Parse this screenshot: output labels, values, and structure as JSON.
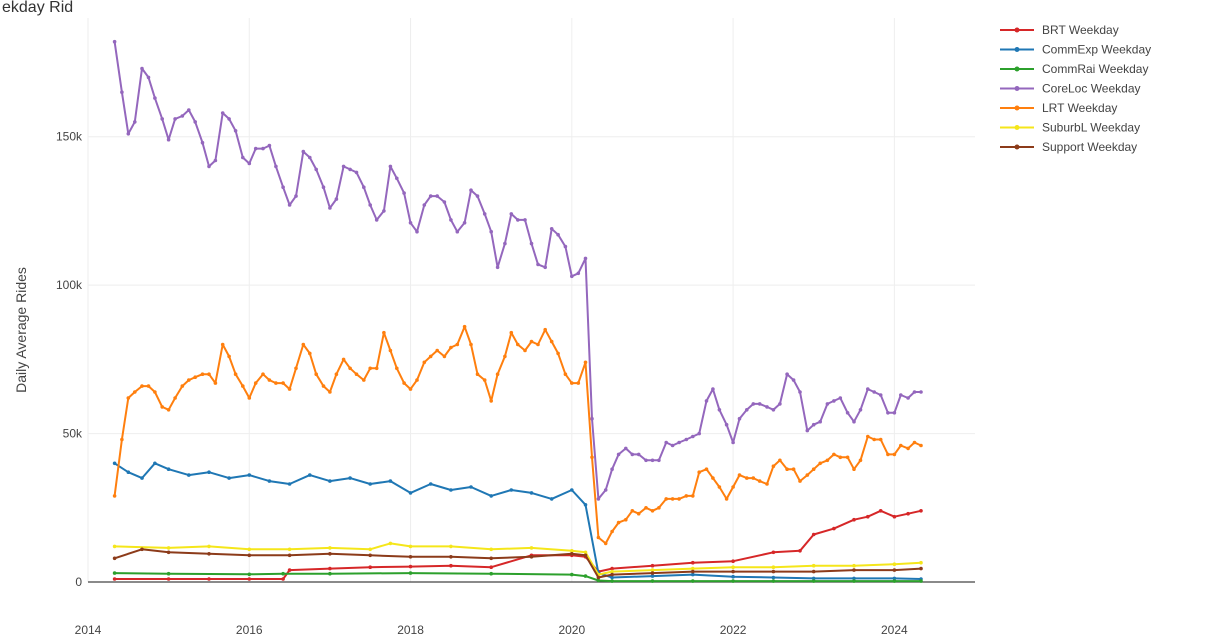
{
  "chart_data": {
    "type": "line",
    "title": "ekday Rid",
    "ylabel": "Daily Average Rides",
    "xlabel": "",
    "xlim": [
      2014.0,
      2025.0
    ],
    "ylim": [
      0,
      190000
    ],
    "x_ticks": [
      2014,
      2016,
      2018,
      2020,
      2022,
      2024
    ],
    "x_tick_labels": [
      "2014",
      "2016",
      "2018",
      "2020",
      "2022",
      "2024"
    ],
    "y_ticks": [
      0,
      50000,
      100000,
      150000
    ],
    "y_tick_labels": [
      "0",
      "50k",
      "100k",
      "150k"
    ],
    "grid": true,
    "legend_position": "top-right",
    "series": [
      {
        "name": "BRT Weekday",
        "color": "#d62728",
        "x": [
          2014.33,
          2015.0,
          2015.5,
          2016.0,
          2016.42,
          2016.5,
          2017.0,
          2017.5,
          2018.0,
          2018.5,
          2019.0,
          2019.5,
          2020.0,
          2020.17,
          2020.33,
          2020.5,
          2021.0,
          2021.5,
          2022.0,
          2022.5,
          2022.83,
          2023.0,
          2023.25,
          2023.5,
          2023.67,
          2023.83,
          2024.0,
          2024.17,
          2024.33
        ],
        "y": [
          1000,
          1000,
          1000,
          1000,
          1000,
          4000,
          4500,
          5000,
          5200,
          5500,
          5000,
          9000,
          9000,
          8500,
          3500,
          4500,
          5500,
          6500,
          7000,
          10000,
          10500,
          16000,
          18000,
          21000,
          22000,
          24000,
          22000,
          23000,
          24000
        ]
      },
      {
        "name": "CommExp Weekday",
        "color": "#1f77b4",
        "x": [
          2014.33,
          2014.5,
          2014.67,
          2014.83,
          2015.0,
          2015.25,
          2015.5,
          2015.75,
          2016.0,
          2016.25,
          2016.5,
          2016.75,
          2017.0,
          2017.25,
          2017.5,
          2017.75,
          2018.0,
          2018.25,
          2018.5,
          2018.75,
          2019.0,
          2019.25,
          2019.5,
          2019.75,
          2020.0,
          2020.17,
          2020.33,
          2020.5,
          2021.0,
          2021.5,
          2022.0,
          2022.5,
          2023.0,
          2023.5,
          2024.0,
          2024.33
        ],
        "y": [
          40000,
          37000,
          35000,
          40000,
          38000,
          36000,
          37000,
          35000,
          36000,
          34000,
          33000,
          36000,
          34000,
          35000,
          33000,
          34000,
          30000,
          33000,
          31000,
          32000,
          29000,
          31000,
          30000,
          28000,
          31000,
          26000,
          3000,
          1500,
          2000,
          2500,
          1800,
          1500,
          1200,
          1200,
          1200,
          1000
        ]
      },
      {
        "name": "CommRai Weekday",
        "color": "#2ca02c",
        "x": [
          2014.33,
          2015.0,
          2016.0,
          2016.42,
          2017.0,
          2018.0,
          2019.0,
          2020.0,
          2020.17,
          2020.33,
          2020.5,
          2021.0,
          2021.5,
          2022.0,
          2022.5,
          2023.0,
          2023.5,
          2024.0,
          2024.33
        ],
        "y": [
          3000,
          2800,
          2600,
          2800,
          2800,
          3000,
          2800,
          2500,
          2000,
          500,
          300,
          300,
          300,
          300,
          300,
          300,
          300,
          300,
          300
        ]
      },
      {
        "name": "CoreLoc Weekday",
        "color": "#9467bd",
        "x": [
          2014.33,
          2014.42,
          2014.5,
          2014.58,
          2014.67,
          2014.75,
          2014.83,
          2014.92,
          2015.0,
          2015.08,
          2015.17,
          2015.25,
          2015.33,
          2015.42,
          2015.5,
          2015.58,
          2015.67,
          2015.75,
          2015.83,
          2015.92,
          2016.0,
          2016.08,
          2016.17,
          2016.25,
          2016.33,
          2016.42,
          2016.5,
          2016.58,
          2016.67,
          2016.75,
          2016.83,
          2016.92,
          2017.0,
          2017.08,
          2017.17,
          2017.25,
          2017.33,
          2017.42,
          2017.5,
          2017.58,
          2017.67,
          2017.75,
          2017.83,
          2017.92,
          2018.0,
          2018.08,
          2018.17,
          2018.25,
          2018.33,
          2018.42,
          2018.5,
          2018.58,
          2018.67,
          2018.75,
          2018.83,
          2018.92,
          2019.0,
          2019.08,
          2019.17,
          2019.25,
          2019.33,
          2019.42,
          2019.5,
          2019.58,
          2019.67,
          2019.75,
          2019.83,
          2019.92,
          2020.0,
          2020.08,
          2020.17,
          2020.25,
          2020.33,
          2020.42,
          2020.5,
          2020.58,
          2020.67,
          2020.75,
          2020.83,
          2020.92,
          2021.0,
          2021.08,
          2021.17,
          2021.25,
          2021.33,
          2021.42,
          2021.5,
          2021.58,
          2021.67,
          2021.75,
          2021.83,
          2021.92,
          2022.0,
          2022.08,
          2022.17,
          2022.25,
          2022.33,
          2022.42,
          2022.5,
          2022.58,
          2022.67,
          2022.75,
          2022.83,
          2022.92,
          2023.0,
          2023.08,
          2023.17,
          2023.25,
          2023.33,
          2023.42,
          2023.5,
          2023.58,
          2023.67,
          2023.75,
          2023.83,
          2023.92,
          2024.0,
          2024.08,
          2024.17,
          2024.25,
          2024.33
        ],
        "y": [
          182000,
          165000,
          151000,
          155000,
          173000,
          170000,
          163000,
          156000,
          149000,
          156000,
          157000,
          159000,
          155000,
          148000,
          140000,
          142000,
          158000,
          156000,
          152000,
          143000,
          141000,
          146000,
          146000,
          147000,
          140000,
          133000,
          127000,
          130000,
          145000,
          143000,
          139000,
          133000,
          126000,
          129000,
          140000,
          139000,
          138000,
          133000,
          127000,
          122000,
          125000,
          140000,
          136000,
          131000,
          121000,
          118000,
          127000,
          130000,
          130000,
          128000,
          122000,
          118000,
          121000,
          132000,
          130000,
          124000,
          118000,
          106000,
          114000,
          124000,
          122000,
          122000,
          114000,
          107000,
          106000,
          119000,
          117000,
          113000,
          103000,
          104000,
          109000,
          55000,
          28000,
          31000,
          38000,
          43000,
          45000,
          43000,
          43000,
          41000,
          41000,
          41000,
          47000,
          46000,
          47000,
          48000,
          49000,
          50000,
          61000,
          65000,
          58000,
          53000,
          47000,
          55000,
          58000,
          60000,
          60000,
          59000,
          58000,
          60000,
          70000,
          68000,
          64000,
          51000,
          53000,
          54000,
          60000,
          61000,
          62000,
          57000,
          54000,
          58000,
          65000,
          64000,
          63000,
          57000,
          57000,
          63000,
          62000,
          64000,
          64000
        ]
      },
      {
        "name": "LRT Weekday",
        "color": "#ff7f0e",
        "x": [
          2014.33,
          2014.42,
          2014.5,
          2014.58,
          2014.67,
          2014.75,
          2014.83,
          2014.92,
          2015.0,
          2015.08,
          2015.17,
          2015.25,
          2015.33,
          2015.42,
          2015.5,
          2015.58,
          2015.67,
          2015.75,
          2015.83,
          2015.92,
          2016.0,
          2016.08,
          2016.17,
          2016.25,
          2016.33,
          2016.42,
          2016.5,
          2016.58,
          2016.67,
          2016.75,
          2016.83,
          2016.92,
          2017.0,
          2017.08,
          2017.17,
          2017.25,
          2017.33,
          2017.42,
          2017.5,
          2017.58,
          2017.67,
          2017.75,
          2017.83,
          2017.92,
          2018.0,
          2018.08,
          2018.17,
          2018.25,
          2018.33,
          2018.42,
          2018.5,
          2018.58,
          2018.67,
          2018.75,
          2018.83,
          2018.92,
          2019.0,
          2019.08,
          2019.17,
          2019.25,
          2019.33,
          2019.42,
          2019.5,
          2019.58,
          2019.67,
          2019.75,
          2019.83,
          2019.92,
          2020.0,
          2020.08,
          2020.17,
          2020.25,
          2020.33,
          2020.42,
          2020.5,
          2020.58,
          2020.67,
          2020.75,
          2020.83,
          2020.92,
          2021.0,
          2021.08,
          2021.17,
          2021.25,
          2021.33,
          2021.42,
          2021.5,
          2021.58,
          2021.67,
          2021.75,
          2021.83,
          2021.92,
          2022.0,
          2022.08,
          2022.17,
          2022.25,
          2022.33,
          2022.42,
          2022.5,
          2022.58,
          2022.67,
          2022.75,
          2022.83,
          2022.92,
          2023.0,
          2023.08,
          2023.17,
          2023.25,
          2023.33,
          2023.42,
          2023.5,
          2023.58,
          2023.67,
          2023.75,
          2023.83,
          2023.92,
          2024.0,
          2024.08,
          2024.17,
          2024.25,
          2024.33
        ],
        "y": [
          29000,
          48000,
          62000,
          64000,
          66000,
          66000,
          64000,
          59000,
          58000,
          62000,
          66000,
          68000,
          69000,
          70000,
          70000,
          67000,
          80000,
          76000,
          70000,
          66000,
          62000,
          67000,
          70000,
          68000,
          67000,
          67000,
          65000,
          72000,
          80000,
          77000,
          70000,
          66000,
          64000,
          70000,
          75000,
          72000,
          70000,
          68000,
          72000,
          72000,
          84000,
          78000,
          72000,
          67000,
          65000,
          68000,
          74000,
          76000,
          78000,
          76000,
          79000,
          80000,
          86000,
          80000,
          70000,
          68000,
          61000,
          70000,
          76000,
          84000,
          80000,
          78000,
          81000,
          80000,
          85000,
          81000,
          77000,
          70000,
          67000,
          67000,
          74000,
          42000,
          15000,
          13000,
          17000,
          20000,
          21000,
          24000,
          23000,
          25000,
          24000,
          25000,
          28000,
          28000,
          28000,
          29000,
          29000,
          37000,
          38000,
          35000,
          32000,
          28000,
          32000,
          36000,
          35000,
          35000,
          34000,
          33000,
          39000,
          41000,
          38000,
          38000,
          34000,
          36000,
          38000,
          40000,
          41000,
          43000,
          42000,
          42000,
          38000,
          41000,
          49000,
          48000,
          48000,
          43000,
          43000,
          46000,
          45000,
          47000,
          46000
        ]
      },
      {
        "name": "SuburbL Weekday",
        "color": "#f5e61a",
        "x": [
          2014.33,
          2015.0,
          2015.5,
          2016.0,
          2016.5,
          2017.0,
          2017.5,
          2017.75,
          2018.0,
          2018.5,
          2019.0,
          2019.5,
          2020.0,
          2020.17,
          2020.33,
          2020.5,
          2021.0,
          2021.5,
          2022.0,
          2022.5,
          2023.0,
          2023.5,
          2024.0,
          2024.33
        ],
        "y": [
          12000,
          11500,
          12000,
          11000,
          11000,
          11500,
          11000,
          13000,
          12000,
          12000,
          11000,
          11500,
          10500,
          10000,
          2500,
          3500,
          4000,
          4500,
          5000,
          5000,
          5500,
          5500,
          6000,
          6500
        ]
      },
      {
        "name": "Support Weekday",
        "color": "#8c3b1a",
        "x": [
          2014.33,
          2014.67,
          2015.0,
          2015.5,
          2016.0,
          2016.5,
          2017.0,
          2017.5,
          2018.0,
          2018.5,
          2019.0,
          2019.5,
          2020.0,
          2020.17,
          2020.33,
          2020.5,
          2021.0,
          2021.5,
          2022.0,
          2022.5,
          2023.0,
          2023.5,
          2024.0,
          2024.33
        ],
        "y": [
          8000,
          11000,
          10000,
          9500,
          9000,
          9000,
          9500,
          9000,
          8500,
          8500,
          8000,
          8500,
          9500,
          9000,
          1500,
          2500,
          3000,
          3500,
          3500,
          3500,
          3500,
          4000,
          4000,
          4500
        ]
      }
    ]
  }
}
